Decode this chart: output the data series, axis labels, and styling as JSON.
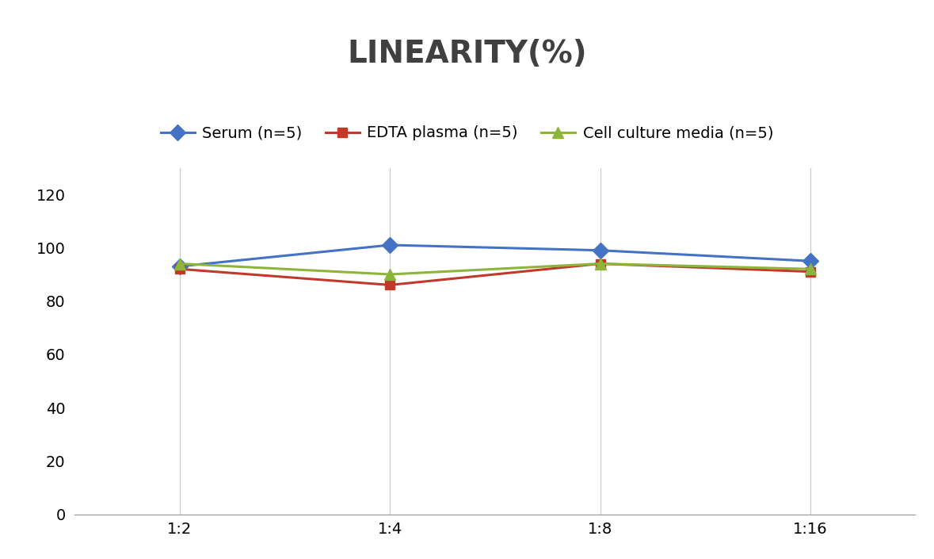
{
  "title": "LINEARITY(%)",
  "title_fontsize": 28,
  "title_fontweight": "bold",
  "x_labels": [
    "1:2",
    "1:4",
    "1:8",
    "1:16"
  ],
  "serum": [
    93,
    101,
    99,
    95
  ],
  "edta_plasma": [
    92,
    86,
    94,
    91
  ],
  "cell_culture": [
    94,
    90,
    94,
    92
  ],
  "series_labels": [
    "Serum (n=5)",
    "EDTA plasma (n=5)",
    "Cell culture media (n=5)"
  ],
  "colors": [
    "#4472C4",
    "#C0392B",
    "#8DB53B"
  ],
  "ylim": [
    0,
    130
  ],
  "yticks": [
    0,
    20,
    40,
    60,
    80,
    100,
    120
  ],
  "legend_fontsize": 14,
  "tick_fontsize": 14,
  "marker_size": 9,
  "line_width": 2.2,
  "background_color": "#FFFFFF",
  "grid_color": "#CCCCCC",
  "title_color": "#404040"
}
